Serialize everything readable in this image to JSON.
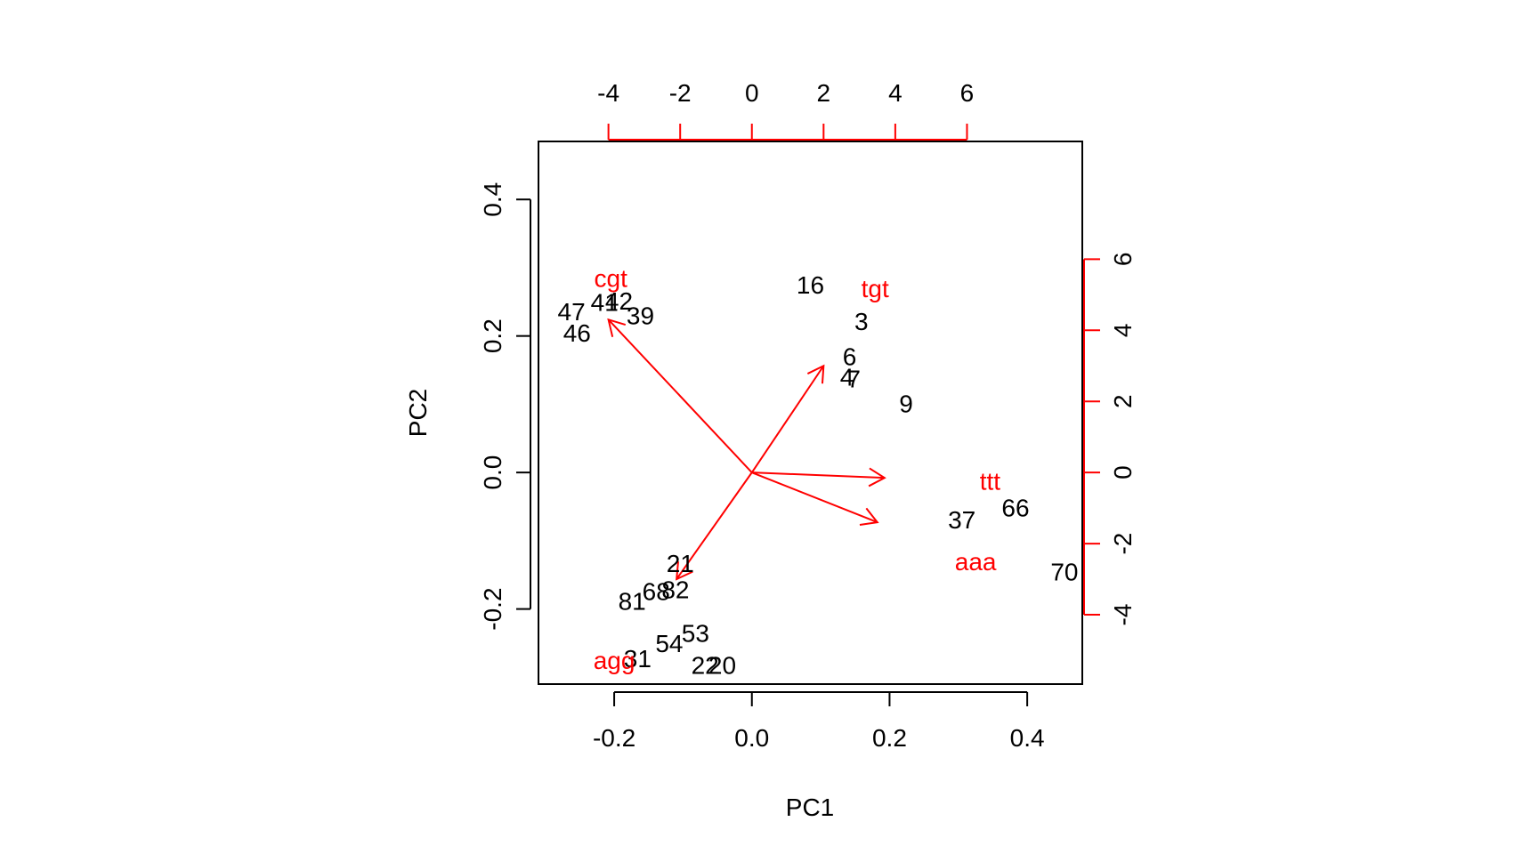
{
  "chart_data": {
    "type": "scatter",
    "subtype": "biplot",
    "xlabel": "PC1",
    "ylabel": "PC2",
    "xlim": [
      -0.31,
      0.48
    ],
    "ylim": [
      -0.31,
      0.485
    ],
    "x_ticks": [
      -0.2,
      0.0,
      0.2,
      0.4
    ],
    "x_tick_labels": [
      "-0.2",
      "0.0",
      "0.2",
      "0.4"
    ],
    "y_ticks": [
      -0.2,
      0.0,
      0.2,
      0.4
    ],
    "y_tick_labels": [
      "-0.2",
      "0.0",
      "0.2",
      "0.4"
    ],
    "top_ticks": [
      -4,
      -2,
      0,
      2,
      4,
      6
    ],
    "top_tick_labels": [
      "-4",
      "-2",
      "0",
      "2",
      "4",
      "6"
    ],
    "right_ticks": [
      -4,
      -2,
      0,
      2,
      4,
      6
    ],
    "right_tick_labels": [
      "-4",
      "-2",
      "0",
      "2",
      "4",
      "6"
    ],
    "secondary_scale": 19.2,
    "grid": false,
    "colors": {
      "points": "#000000",
      "arrows": "#ff0000",
      "secondary_axis": "#ff0000"
    },
    "observations": [
      {
        "label": "16",
        "x": 0.085,
        "y": 0.275
      },
      {
        "label": "3",
        "x": 0.159,
        "y": 0.222
      },
      {
        "label": "6",
        "x": 0.142,
        "y": 0.17
      },
      {
        "label": "4",
        "x": 0.138,
        "y": 0.14
      },
      {
        "label": "7",
        "x": 0.148,
        "y": 0.138
      },
      {
        "label": "9",
        "x": 0.224,
        "y": 0.101
      },
      {
        "label": "47",
        "x": -0.262,
        "y": 0.236
      },
      {
        "label": "41",
        "x": -0.214,
        "y": 0.25
      },
      {
        "label": "42",
        "x": -0.193,
        "y": 0.252
      },
      {
        "label": "39",
        "x": -0.162,
        "y": 0.23
      },
      {
        "label": "46",
        "x": -0.254,
        "y": 0.205
      },
      {
        "label": "37",
        "x": 0.305,
        "y": -0.069
      },
      {
        "label": "66",
        "x": 0.383,
        "y": -0.051
      },
      {
        "label": "70",
        "x": 0.454,
        "y": -0.145
      },
      {
        "label": "21",
        "x": -0.104,
        "y": -0.133
      },
      {
        "label": "81",
        "x": -0.174,
        "y": -0.188
      },
      {
        "label": "68",
        "x": -0.139,
        "y": -0.174
      },
      {
        "label": "82",
        "x": -0.111,
        "y": -0.171
      },
      {
        "label": "53",
        "x": -0.082,
        "y": -0.235
      },
      {
        "label": "54",
        "x": -0.12,
        "y": -0.25
      },
      {
        "label": "31",
        "x": -0.166,
        "y": -0.272
      },
      {
        "label": "22",
        "x": -0.068,
        "y": -0.282
      },
      {
        "label": "20",
        "x": -0.043,
        "y": -0.282
      }
    ],
    "variables": [
      {
        "label": "cgt",
        "x": -4.0,
        "y": 4.3
      },
      {
        "label": "tgt",
        "x": 2.0,
        "y": 3.0
      },
      {
        "label": "ttt",
        "x": 3.7,
        "y": -0.15
      },
      {
        "label": "aaa",
        "x": 3.5,
        "y": -1.4
      },
      {
        "label": "agg",
        "x": -2.1,
        "y": -3.0
      }
    ],
    "variable_labels": [
      {
        "label": "cgt",
        "x": -0.205,
        "y": 0.285
      },
      {
        "label": "tgt",
        "x": 0.179,
        "y": 0.27
      },
      {
        "label": "ttt",
        "x": 0.346,
        "y": -0.012
      },
      {
        "label": "aaa",
        "x": 0.325,
        "y": -0.13
      },
      {
        "label": "agg",
        "x": -0.2,
        "y": -0.275
      }
    ]
  }
}
